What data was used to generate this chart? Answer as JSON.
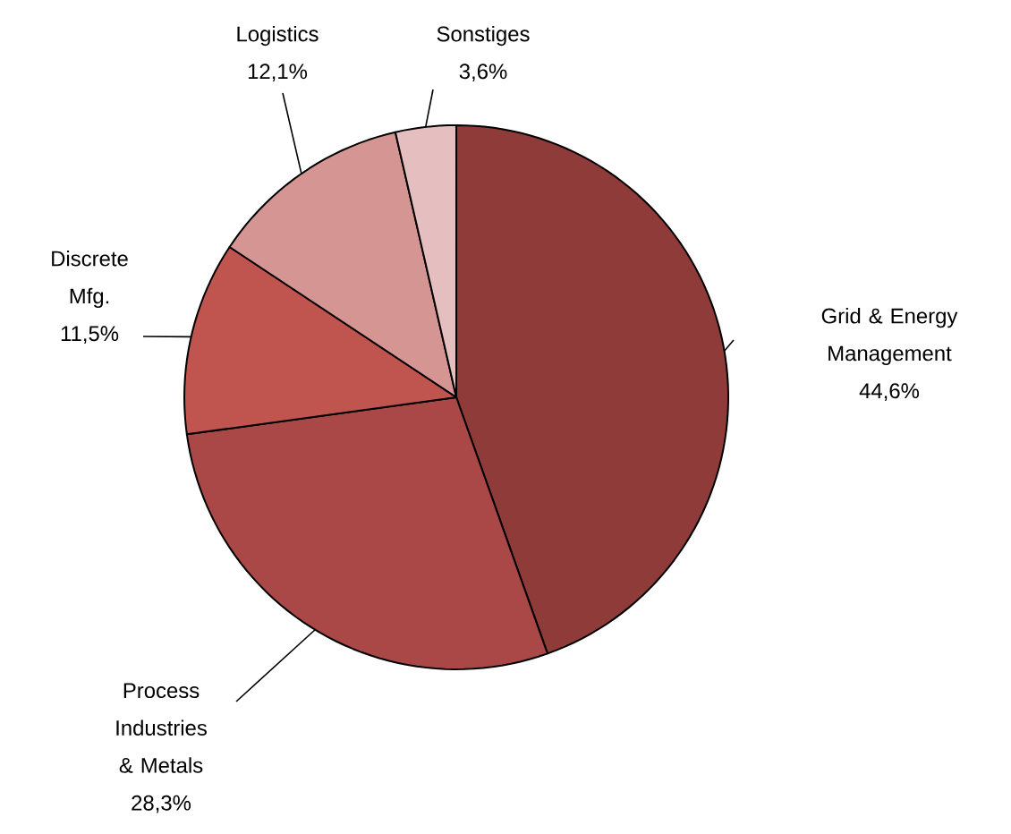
{
  "chart_data": {
    "type": "pie",
    "categories": [
      "Grid & Energy Management",
      "Process Industries & Metals",
      "Discrete Mfg.",
      "Logistics",
      "Sonstiges"
    ],
    "values": [
      44.6,
      28.3,
      11.5,
      12.1,
      3.6
    ],
    "value_labels": [
      "44,6%",
      "28,3%",
      "11,5%",
      "12,1%",
      "3,6%"
    ],
    "colors": [
      "#8e3b3a",
      "#a94846",
      "#c05550",
      "#d49593",
      "#e5bfbf"
    ]
  }
}
